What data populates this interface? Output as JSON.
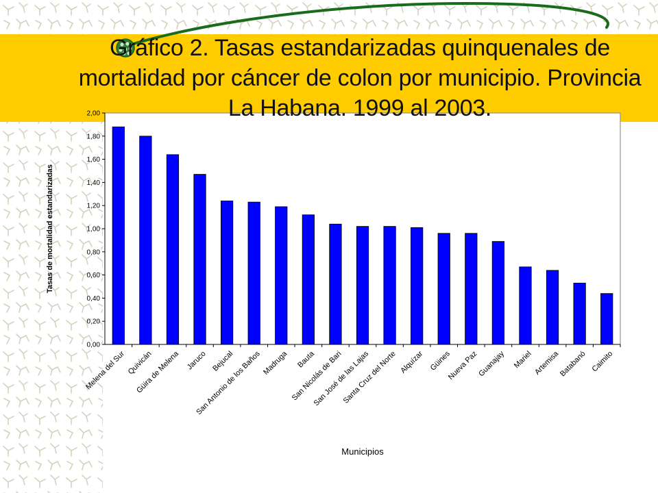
{
  "slide": {
    "title": "Gráfico 2. Tasas estandarizadas quinquenales de mortalidad por cáncer de colon por municipio. Provincia La Habana. 1999 al 2003."
  },
  "colors": {
    "band": "#ffcc00",
    "bar": "#0000ff",
    "swoosh": "#1a6b1a",
    "bullet": "#2e7d32",
    "pattern": "#d6d2bd"
  },
  "icons": {
    "bullet": "green-cell-bullet-icon"
  },
  "chart_data": {
    "type": "bar",
    "title": "",
    "xlabel": "Municipios",
    "ylabel": "Tasas de mortalidad estandarizadas",
    "ylim": [
      0,
      2.0
    ],
    "yticks": [
      0,
      0.2,
      0.4,
      0.6,
      0.8,
      1.0,
      1.2,
      1.4,
      1.6,
      1.8,
      2.0
    ],
    "ytick_labels": [
      "0,00",
      "0,20",
      "0,40",
      "0,60",
      "0,80",
      "1,00",
      "1,20",
      "1,40",
      "1,60",
      "1,80",
      "2,00"
    ],
    "grid": false,
    "legend": "none",
    "categories": [
      "Melena del Sur",
      "Quivicán",
      "Güira de Melena",
      "Jaruco",
      "Bejucal",
      "San Antonio de los Baños",
      "Madruga",
      "Bauta",
      "San Nicolás de Bari",
      "San José de las Lajas",
      "Santa Cruz del Norte",
      "Alquízar",
      "Güines",
      "Nueva Paz",
      "Guanajay",
      "Mariel",
      "Artemisa",
      "Batabanó",
      "Caimito"
    ],
    "values": [
      1.88,
      1.8,
      1.64,
      1.47,
      1.24,
      1.23,
      1.19,
      1.12,
      1.04,
      1.02,
      1.02,
      1.01,
      0.96,
      0.96,
      0.89,
      0.67,
      0.64,
      0.53,
      0.44
    ]
  }
}
